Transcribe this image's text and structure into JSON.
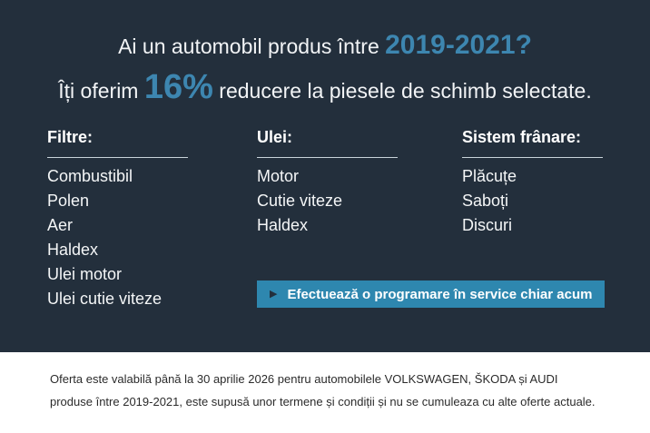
{
  "theme": {
    "panel_bg": "#232f3c",
    "accent_blue": "#3d86b0",
    "button_bg": "#2e87af",
    "text_white": "#ffffff",
    "footer_text_color": "#2b2b2b"
  },
  "header": {
    "line1_prefix": "Ai un automobil produs între ",
    "line1_highlight": "2019-2021?",
    "line2_prefix": "Îți oferim ",
    "line2_highlight": "16%",
    "line2_suffix": " reducere la piesele de schimb selectate."
  },
  "columns": [
    {
      "title": "Filtre:",
      "items": [
        "Combustibil",
        "Polen",
        "Aer",
        "Haldex",
        "Ulei motor",
        "Ulei cutie viteze"
      ]
    },
    {
      "title": "Ulei:",
      "items": [
        "Motor",
        "Cutie viteze",
        "Haldex"
      ]
    },
    {
      "title": "Sistem frânare:",
      "items": [
        "Plăcuțe",
        "Saboți",
        "Discuri"
      ]
    }
  ],
  "cta": {
    "icon": "play-arrow",
    "arrow_glyph": "▶",
    "label": "Efectuează o programare în service chiar acum"
  },
  "footer": {
    "line1": "Oferta este valabilă până la 30 aprilie 2026 pentru automobilele VOLKSWAGEN, ŠKODA și AUDI",
    "line2": "produse între 2019-2021, este supusă unor termene și condiții și nu se cumuleaza cu alte oferte actuale."
  }
}
